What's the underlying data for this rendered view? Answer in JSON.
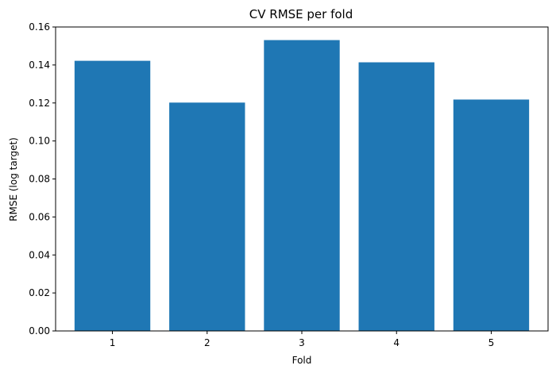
{
  "chart_data": {
    "type": "bar",
    "title": "CV RMSE per fold",
    "xlabel": "Fold",
    "ylabel": "RMSE (log target)",
    "categories": [
      "1",
      "2",
      "3",
      "4",
      "5"
    ],
    "values": [
      0.1422,
      0.1202,
      0.1531,
      0.1414,
      0.1218
    ],
    "ylim": [
      0,
      0.16
    ],
    "yticks": [
      0.0,
      0.02,
      0.04,
      0.06,
      0.08,
      0.1,
      0.12,
      0.14,
      0.16
    ],
    "ytick_labels": [
      "0.00",
      "0.02",
      "0.04",
      "0.06",
      "0.08",
      "0.10",
      "0.12",
      "0.14",
      "0.16"
    ],
    "bar_color": "#1f77b4",
    "grid": false,
    "legend": false
  }
}
